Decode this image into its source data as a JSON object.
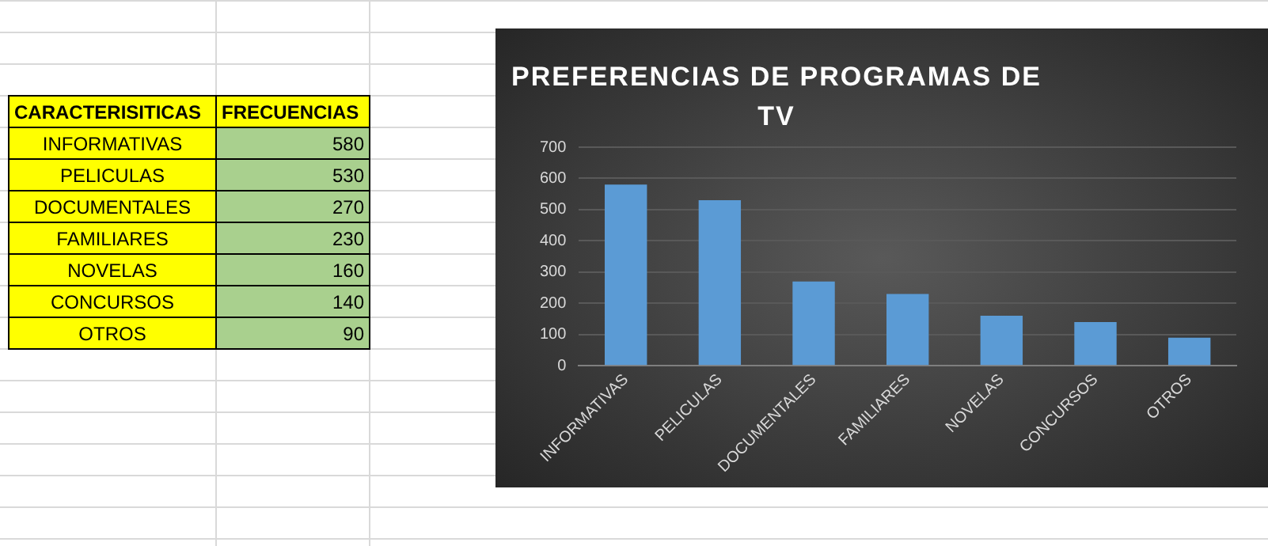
{
  "chart_data": [
    {
      "type": "other",
      "xlabel": "CARACTERISITICAS",
      "ylabel": "FRECUENCIAS",
      "categories": [
        "INFORMATIVAS",
        "PELICULAS",
        "DOCUMENTALES",
        "FAMILIARES",
        "NOVELAS",
        "CONCURSOS",
        "OTROS"
      ],
      "values": [
        580,
        530,
        270,
        230,
        160,
        140,
        90
      ],
      "data_labels": true
    },
    {
      "type": "bar",
      "title": "PREFERENCIAS DE PROGRAMAS DE TV",
      "categories": [
        "INFORMATIVAS",
        "PELICULAS",
        "DOCUMENTALES",
        "FAMILIARES",
        "NOVELAS",
        "CONCURSOS",
        "OTROS"
      ],
      "values": [
        580,
        530,
        270,
        230,
        160,
        140,
        90
      ],
      "color": "#5b9bd5",
      "ylim": [
        0,
        700
      ],
      "yticks": [
        0,
        100,
        200,
        300,
        400,
        500,
        600,
        700
      ],
      "grid": "y"
    }
  ]
}
